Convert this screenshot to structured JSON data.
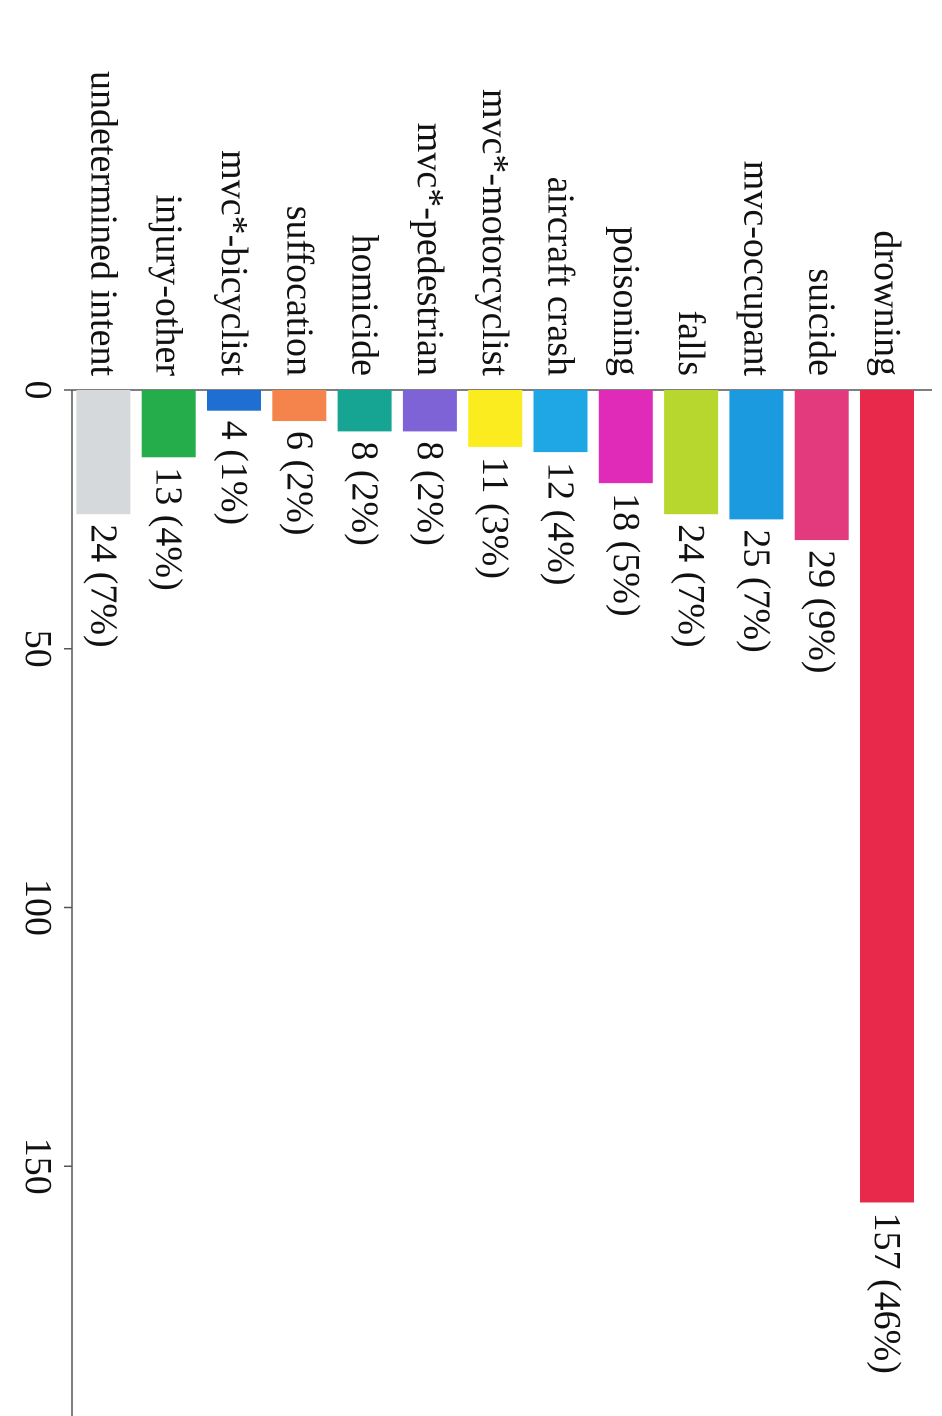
{
  "chart_data": {
    "type": "bar",
    "orientation": "horizontal",
    "rotated": "90deg-clockwise",
    "categories": [
      "drowning",
      "suicide",
      "mvc-occupant",
      "falls",
      "poisoning",
      "aircraft crash",
      "mvc*-motorcyclist",
      "mvc*-pedestrian",
      "homicide",
      "suffocation",
      "mvc*-bicyclist",
      "injury-other",
      "undetermined intent"
    ],
    "values": [
      157,
      29,
      25,
      24,
      18,
      12,
      11,
      8,
      8,
      6,
      4,
      13,
      24
    ],
    "value_labels": [
      "157 (46%)",
      "29 (9%)",
      "25 (7%)",
      "24 (7%)",
      "18 (5%)",
      "12 (4%)",
      "11 (3%)",
      "8 (2%)",
      "8 (2%)",
      "6 (2%)",
      "4 (1%)",
      "13 (4%)",
      "24 (7%)"
    ],
    "colors": [
      "#e8294c",
      "#e23a7c",
      "#1b9ae0",
      "#b7d72e",
      "#e02bb8",
      "#1ea6e5",
      "#fbec1f",
      "#7d63d6",
      "#17a593",
      "#f5834c",
      "#1f6fd2",
      "#25ad4c",
      "#d5d9dc"
    ],
    "xticks": [
      "0",
      "50",
      "100",
      "150"
    ],
    "xlim": [
      0,
      180
    ],
    "grid": false,
    "title": "",
    "xlabel": "",
    "ylabel": ""
  }
}
